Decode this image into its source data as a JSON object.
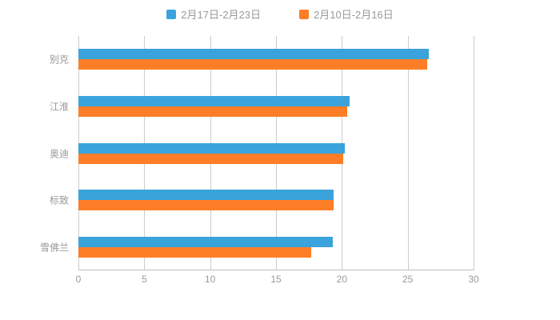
{
  "legend": {
    "items": [
      {
        "label": "2月17日-2月23日",
        "color": "#3aa3dc"
      },
      {
        "label": "2月10日-2月16日",
        "color": "#fd7e26"
      }
    ]
  },
  "chart_data": {
    "type": "bar",
    "orientation": "horizontal",
    "title": "",
    "xlabel": "",
    "ylabel": "",
    "categories": [
      "别克",
      "江淮",
      "奥迪",
      "标致",
      "雪佛兰"
    ],
    "series": [
      {
        "name": "2月17日-2月23日",
        "color": "#3aa3dc",
        "values": [
          26.6,
          20.6,
          20.2,
          19.4,
          19.3
        ]
      },
      {
        "name": "2月10日-2月16日",
        "color": "#fd7e26",
        "values": [
          26.5,
          20.4,
          20.1,
          19.4,
          17.7
        ]
      }
    ],
    "xlim": [
      0,
      30
    ],
    "xticks": [
      0,
      5,
      10,
      15,
      20,
      25,
      30
    ],
    "grid": true,
    "legend_position": "top"
  }
}
